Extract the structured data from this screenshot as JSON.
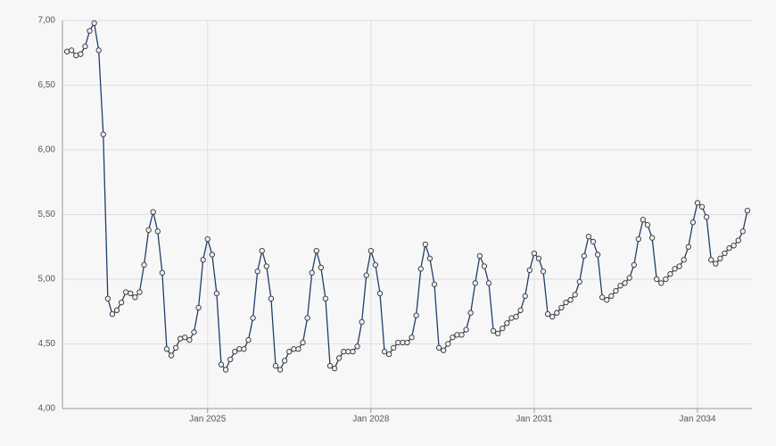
{
  "chart_data": {
    "type": "line",
    "x": [
      "2022-06",
      "2022-07",
      "2022-08",
      "2022-09",
      "2022-10",
      "2022-11",
      "2022-12",
      "2023-01",
      "2023-02",
      "2023-03",
      "2023-04",
      "2023-05",
      "2023-06",
      "2023-07",
      "2023-08",
      "2023-09",
      "2023-10",
      "2023-11",
      "2023-12",
      "2024-01",
      "2024-02",
      "2024-03",
      "2024-04",
      "2024-05",
      "2024-06",
      "2024-07",
      "2024-08",
      "2024-09",
      "2024-10",
      "2024-11",
      "2024-12",
      "2025-01",
      "2025-02",
      "2025-03",
      "2025-04",
      "2025-05",
      "2025-06",
      "2025-07",
      "2025-08",
      "2025-09",
      "2025-10",
      "2025-11",
      "2025-12",
      "2026-01",
      "2026-02",
      "2026-03",
      "2026-04",
      "2026-05",
      "2026-06",
      "2026-07",
      "2026-08",
      "2026-09",
      "2026-10",
      "2026-11",
      "2026-12",
      "2027-01",
      "2027-02",
      "2027-03",
      "2027-04",
      "2027-05",
      "2027-06",
      "2027-07",
      "2027-08",
      "2027-09",
      "2027-10",
      "2027-11",
      "2027-12",
      "2028-01",
      "2028-02",
      "2028-03",
      "2028-04",
      "2028-05",
      "2028-06",
      "2028-07",
      "2028-08",
      "2028-09",
      "2028-10",
      "2028-11",
      "2028-12",
      "2029-01",
      "2029-02",
      "2029-03",
      "2029-04",
      "2029-05",
      "2029-06",
      "2029-07",
      "2029-08",
      "2029-09",
      "2029-10",
      "2029-11",
      "2029-12",
      "2030-01",
      "2030-02",
      "2030-03",
      "2030-04",
      "2030-05",
      "2030-06",
      "2030-07",
      "2030-08",
      "2030-09",
      "2030-10",
      "2030-11",
      "2030-12",
      "2031-01",
      "2031-02",
      "2031-03",
      "2031-04",
      "2031-05",
      "2031-06",
      "2031-07",
      "2031-08",
      "2031-09",
      "2031-10",
      "2031-11",
      "2031-12",
      "2032-01",
      "2032-02",
      "2032-03",
      "2032-04",
      "2032-05",
      "2032-06",
      "2032-07",
      "2032-08",
      "2032-09",
      "2032-10",
      "2032-11",
      "2032-12",
      "2033-01",
      "2033-02",
      "2033-03",
      "2033-04",
      "2033-05",
      "2033-06",
      "2033-07",
      "2033-08",
      "2033-09",
      "2033-10",
      "2033-11",
      "2033-12",
      "2034-01",
      "2034-02",
      "2034-03",
      "2034-04",
      "2034-05",
      "2034-06",
      "2034-07",
      "2034-08",
      "2034-09",
      "2034-10",
      "2034-11",
      "2034-12"
    ],
    "values": [
      6.76,
      6.77,
      6.73,
      6.74,
      6.8,
      6.92,
      6.98,
      6.77,
      6.12,
      4.85,
      4.73,
      4.76,
      4.82,
      4.9,
      4.89,
      4.86,
      4.9,
      5.11,
      5.38,
      5.52,
      5.37,
      5.05,
      4.46,
      4.41,
      4.47,
      4.54,
      4.55,
      4.53,
      4.59,
      4.78,
      5.15,
      5.31,
      5.19,
      4.89,
      4.34,
      4.3,
      4.38,
      4.44,
      4.46,
      4.46,
      4.53,
      4.7,
      5.06,
      5.22,
      5.1,
      4.85,
      4.33,
      4.3,
      4.37,
      4.44,
      4.46,
      4.46,
      4.51,
      4.7,
      5.05,
      5.22,
      5.09,
      4.85,
      4.33,
      4.31,
      4.39,
      4.44,
      4.44,
      4.44,
      4.48,
      4.67,
      5.03,
      5.22,
      5.11,
      4.89,
      4.44,
      4.42,
      4.47,
      4.51,
      4.51,
      4.51,
      4.55,
      4.72,
      5.08,
      5.27,
      5.16,
      4.96,
      4.47,
      4.45,
      4.5,
      4.55,
      4.57,
      4.57,
      4.61,
      4.74,
      4.97,
      5.18,
      5.1,
      4.97,
      4.6,
      4.58,
      4.62,
      4.66,
      4.7,
      4.71,
      4.76,
      4.87,
      5.07,
      5.2,
      5.16,
      5.06,
      4.73,
      4.71,
      4.74,
      4.78,
      4.82,
      4.84,
      4.88,
      4.98,
      5.18,
      5.33,
      5.29,
      5.19,
      4.86,
      4.84,
      4.87,
      4.91,
      4.95,
      4.97,
      5.01,
      5.11,
      5.31,
      5.46,
      5.42,
      5.32,
      5.0,
      4.97,
      5.0,
      5.04,
      5.08,
      5.1,
      5.15,
      5.25,
      5.44,
      5.59,
      5.56,
      5.48,
      5.15,
      5.12,
      5.16,
      5.2,
      5.24,
      5.26,
      5.3,
      5.37,
      5.53
    ],
    "color": "#1f3f6e",
    "xlim": [
      "2022-05",
      "2035-01"
    ],
    "xticks": [
      {
        "value": "2025-01",
        "label": "Jan 2025"
      },
      {
        "value": "2028-01",
        "label": "Jan 2028"
      },
      {
        "value": "2031-01",
        "label": "Jan 2031"
      },
      {
        "value": "2034-01",
        "label": "Jan 2034"
      }
    ],
    "ylim": [
      4,
      7
    ],
    "yticks": [
      {
        "value": 4,
        "label": "4,00"
      },
      {
        "value": 4.5,
        "label": "4,50"
      },
      {
        "value": 5,
        "label": "5,00"
      },
      {
        "value": 5.5,
        "label": "5,50"
      },
      {
        "value": 6,
        "label": "6,00"
      },
      {
        "value": 6.5,
        "label": "6,50"
      },
      {
        "value": 7,
        "label": "7,00"
      }
    ],
    "grid": true
  }
}
